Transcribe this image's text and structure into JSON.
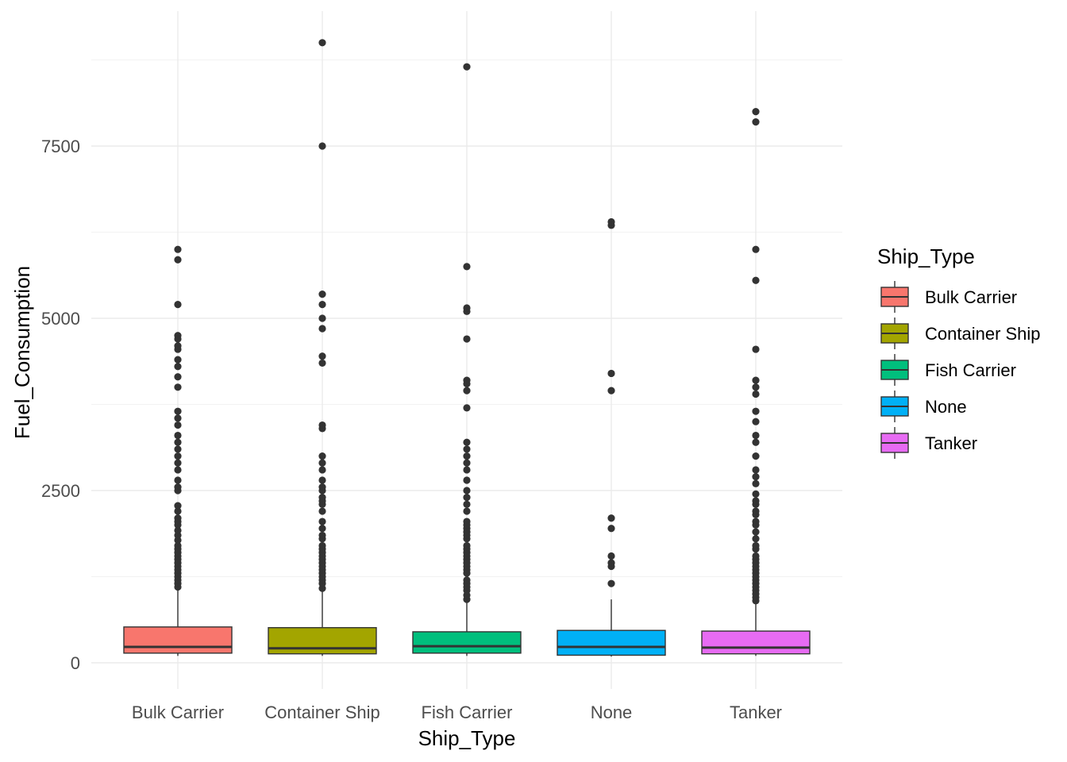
{
  "chart_data": {
    "type": "boxplot",
    "xlabel": "Ship_Type",
    "ylabel": "Fuel_Consumption",
    "ylim": [
      -400,
      9400
    ],
    "yticks": [
      0,
      2500,
      5000,
      7500
    ],
    "ytick_labels": [
      "0",
      "2500",
      "5000",
      "7500"
    ],
    "grid": true,
    "legend": {
      "title": "Ship_Type",
      "position": "right"
    },
    "categories": [
      "Bulk Carrier",
      "Container Ship",
      "Fish Carrier",
      "None",
      "Tanker"
    ],
    "series": [
      {
        "name": "Bulk Carrier",
        "color": "#F8766D",
        "min": 100,
        "q1": 140,
        "median": 230,
        "q3": 520,
        "max": 1120,
        "outliers": [
          1100,
          1150,
          1200,
          1250,
          1300,
          1350,
          1400,
          1450,
          1500,
          1550,
          1600,
          1650,
          1700,
          1780,
          1850,
          1920,
          2000,
          2050,
          2100,
          2200,
          2280,
          2500,
          2550,
          2650,
          2800,
          2900,
          3000,
          3100,
          3200,
          3300,
          3450,
          3550,
          3650,
          4000,
          4150,
          4300,
          4400,
          4550,
          4600,
          4700,
          4750,
          5200,
          5850,
          6000
        ]
      },
      {
        "name": "Container Ship",
        "color": "#A3A500",
        "min": 100,
        "q1": 130,
        "median": 210,
        "q3": 510,
        "max": 1080,
        "outliers": [
          1080,
          1150,
          1200,
          1250,
          1300,
          1350,
          1400,
          1450,
          1500,
          1550,
          1600,
          1650,
          1700,
          1800,
          1850,
          1950,
          2050,
          2200,
          2300,
          2350,
          2400,
          2500,
          2550,
          2650,
          2800,
          2900,
          3000,
          3400,
          3450,
          4350,
          4450,
          4850,
          5000,
          5200,
          5350,
          7500,
          9000
        ]
      },
      {
        "name": "Fish Carrier",
        "color": "#00BF7D",
        "min": 100,
        "q1": 140,
        "median": 240,
        "q3": 450,
        "max": 900,
        "outliers": [
          920,
          980,
          1050,
          1100,
          1150,
          1200,
          1300,
          1350,
          1400,
          1450,
          1500,
          1550,
          1600,
          1650,
          1700,
          1800,
          1850,
          1900,
          1950,
          2000,
          2050,
          2200,
          2300,
          2400,
          2500,
          2650,
          2800,
          2900,
          3000,
          3100,
          3200,
          3700,
          3950,
          4050,
          4100,
          4700,
          5100,
          5150,
          5750,
          8650
        ]
      },
      {
        "name": "None",
        "color": "#00B0F6",
        "min": 90,
        "q1": 110,
        "median": 230,
        "q3": 470,
        "max": 920,
        "outliers": [
          1150,
          1400,
          1450,
          1550,
          1950,
          2100,
          3950,
          4200,
          6350,
          6400
        ]
      },
      {
        "name": "Tanker",
        "color": "#E76BF3",
        "min": 100,
        "q1": 130,
        "median": 220,
        "q3": 460,
        "max": 900,
        "outliers": [
          900,
          950,
          1000,
          1050,
          1100,
          1150,
          1200,
          1250,
          1300,
          1350,
          1400,
          1450,
          1500,
          1550,
          1650,
          1700,
          1800,
          1900,
          2000,
          2050,
          2150,
          2200,
          2300,
          2350,
          2450,
          2600,
          2700,
          2800,
          3000,
          3200,
          3300,
          3500,
          3650,
          3900,
          4000,
          4100,
          4550,
          5550,
          6000,
          7850,
          8000
        ]
      }
    ]
  }
}
